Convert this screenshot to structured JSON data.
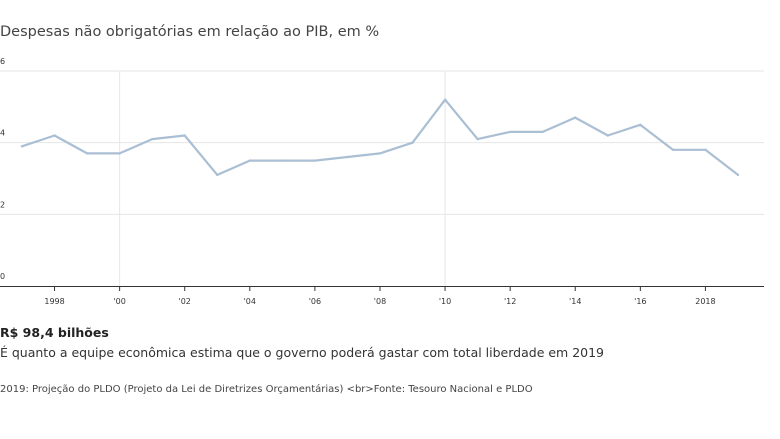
{
  "title": "Despesas não obrigatórias em relação ao PIB, em %",
  "highlight": "R$ 98,4 bilhões",
  "description": "É quanto a equipe econômica estima que o governo poderá gastar com total liberdade em 2019",
  "source": "2019: Projeção do PLDO (Projeto da Lei de Diretrizes Orçamentárias) <br>Fonte: Tesouro Nacional e PLDO",
  "chart_data": {
    "type": "line",
    "title": "Despesas não obrigatórias em relação ao PIB, em %",
    "xlabel": "",
    "ylabel": "",
    "xlim": [
      1997,
      2019.8
    ],
    "ylim": [
      0,
      6
    ],
    "grid": true,
    "line_color": "#aabfd3",
    "ytick_values": [
      0,
      2,
      4,
      6
    ],
    "ytick_labels": [
      "0",
      "2",
      "4",
      "6"
    ],
    "xtick_values": [
      1998,
      2000,
      2002,
      2004,
      2006,
      2008,
      2010,
      2012,
      2014,
      2016,
      2018
    ],
    "xtick_labels": [
      "1998",
      "'00",
      "'02",
      "'04",
      "'06",
      "'08",
      "'10",
      "'12",
      "'14",
      "'16",
      "2018"
    ],
    "emphasized_gridlines_x": [
      2000,
      2010
    ],
    "x": [
      1997,
      1998,
      1999,
      2000,
      2001,
      2002,
      2003,
      2004,
      2005,
      2006,
      2007,
      2008,
      2009,
      2010,
      2011,
      2012,
      2013,
      2014,
      2015,
      2016,
      2017,
      2018,
      2019
    ],
    "y": [
      3.9,
      4.2,
      3.7,
      3.7,
      4.1,
      4.2,
      3.1,
      3.5,
      3.5,
      3.5,
      3.6,
      3.7,
      4.0,
      5.2,
      4.1,
      4.3,
      4.3,
      4.7,
      4.2,
      4.5,
      3.8,
      3.8,
      3.1
    ]
  }
}
